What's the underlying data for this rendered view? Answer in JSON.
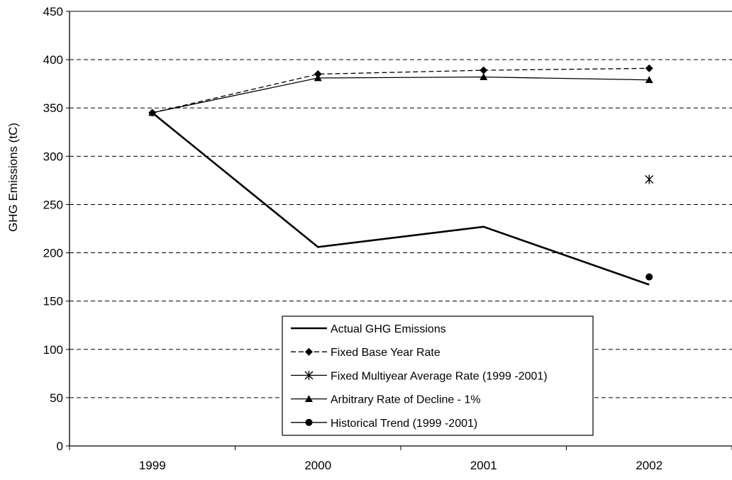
{
  "chart_data": {
    "type": "line",
    "title": "",
    "xlabel": "",
    "ylabel": "GHG Emissions (tC)",
    "categories": [
      "1999",
      "2000",
      "2001",
      "2002"
    ],
    "ylim": [
      0,
      450
    ],
    "yticks": [
      0,
      50,
      100,
      150,
      200,
      250,
      300,
      350,
      400,
      450
    ],
    "grid": "horizontal dashed",
    "legend_position": "bottom-center",
    "series": [
      {
        "name": "Actual GHG Emissions",
        "style": "thick-solid",
        "marker": "none",
        "values": [
          345,
          206,
          227,
          167
        ]
      },
      {
        "name": "Fixed Base Year Rate",
        "style": "dashed",
        "marker": "diamond",
        "values": [
          345,
          385,
          389,
          391
        ]
      },
      {
        "name": "Fixed Multiyear Average Rate (1999 -2001)",
        "style": "solid",
        "marker": "asterisk",
        "values": [
          null,
          null,
          null,
          276
        ]
      },
      {
        "name": "Arbitrary Rate of Decline - 1%",
        "style": "solid",
        "marker": "triangle",
        "values": [
          345,
          381,
          382,
          379
        ]
      },
      {
        "name": "Historical Trend (1999 -2001)",
        "style": "solid",
        "marker": "circle",
        "values": [
          null,
          null,
          null,
          175
        ]
      }
    ]
  }
}
